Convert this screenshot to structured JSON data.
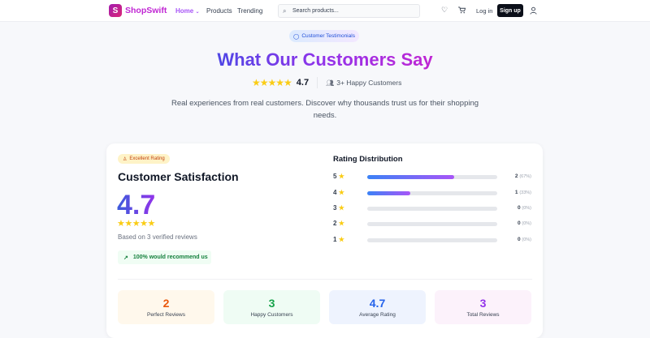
{
  "nav": {
    "logo_letter": "S",
    "brand": "ShopSwift",
    "items": [
      "Home",
      "Products",
      "Trending"
    ],
    "search_placeholder": "Search products...",
    "login": "Log in",
    "signup": "Sign up"
  },
  "hero": {
    "badge": "Customer Testimonials",
    "title": "What Our Customers Say",
    "rating": "4.7",
    "stars": "★★★★★",
    "customers": "3+ Happy Customers",
    "description": "Real experiences from real customers. Discover why thousands trust us for their shopping needs."
  },
  "summary": {
    "badge": "Excellent Rating",
    "title": "Customer Satisfaction",
    "score": "4.7",
    "stars": "★★★★★",
    "based_on": "Based on 3 verified reviews",
    "recommend": "100% would recommend us"
  },
  "distribution": {
    "title": "Rating Distribution",
    "rows": [
      {
        "stars": "5",
        "count": "2",
        "pct": "(67%)",
        "value": 67
      },
      {
        "stars": "4",
        "count": "1",
        "pct": "(33%)",
        "value": 33
      },
      {
        "stars": "3",
        "count": "0",
        "pct": "(0%)",
        "value": 0
      },
      {
        "stars": "2",
        "count": "0",
        "pct": "(0%)",
        "value": 0
      },
      {
        "stars": "1",
        "count": "0",
        "pct": "(0%)",
        "value": 0
      }
    ]
  },
  "stats": [
    {
      "value": "2",
      "label": "Perfect Reviews",
      "color": "#ea580c",
      "bg": "#fff8ec"
    },
    {
      "value": "3",
      "label": "Happy Customers",
      "color": "#16a34a",
      "bg": "#effcf4"
    },
    {
      "value": "4.7",
      "label": "Average Rating",
      "color": "#2563eb",
      "bg": "#eef3fe"
    },
    {
      "value": "3",
      "label": "Total Reviews",
      "color": "#9333ea",
      "bg": "#fcf2fb"
    }
  ],
  "colors": {
    "accent": "#9333ea",
    "brand": "#c026d3",
    "star": "#facc15"
  }
}
